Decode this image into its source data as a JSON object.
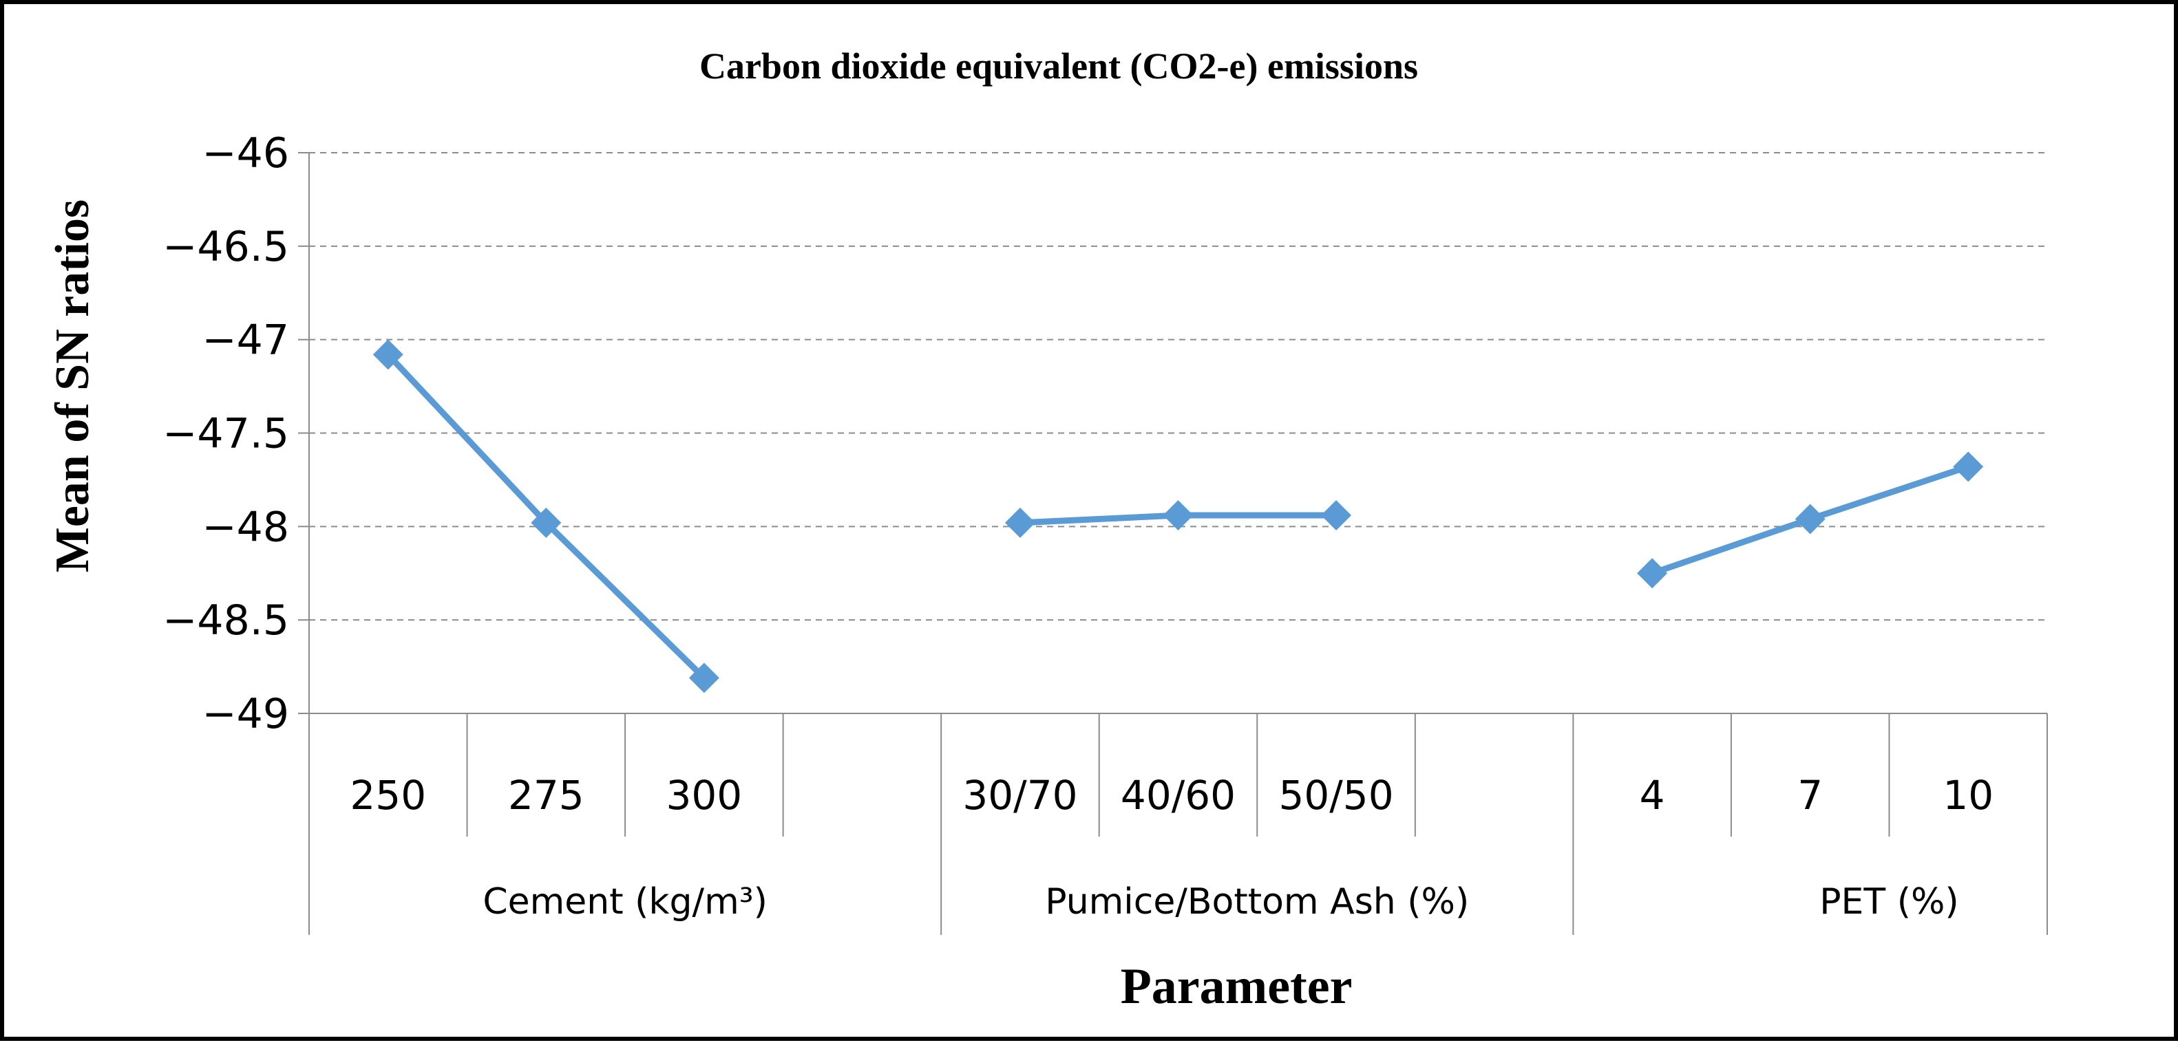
{
  "chart_data": {
    "type": "line",
    "title": "Carbon dioxide equivalent (CO2-e) emissions",
    "xlabel": "Parameter",
    "ylabel": "Mean of SN ratios",
    "ylim": [
      -49,
      -46
    ],
    "yticks": [
      "−46",
      "−46.5",
      "−47",
      "−47.5",
      "−48",
      "−48.5",
      "−49"
    ],
    "ytick_values": [
      -46,
      -46.5,
      -47,
      -47.5,
      -48,
      -48.5,
      -49
    ],
    "grid": "horizontal dashed",
    "line_color": "#5B9BD5",
    "marker": "diamond",
    "groups": [
      {
        "label": "Cement (kg/m³)",
        "categories": [
          "250",
          "275",
          "300"
        ],
        "values": [
          -47.08,
          -47.98,
          -48.81
        ]
      },
      {
        "label": "Pumice/Bottom Ash (%)",
        "categories": [
          "30/70",
          "40/60",
          "50/50"
        ],
        "values": [
          -47.98,
          -47.94,
          -47.94
        ]
      },
      {
        "label": "PET (%)",
        "categories": [
          "4",
          "7",
          "10"
        ],
        "values": [
          -48.25,
          -47.96,
          -47.68
        ]
      }
    ]
  }
}
